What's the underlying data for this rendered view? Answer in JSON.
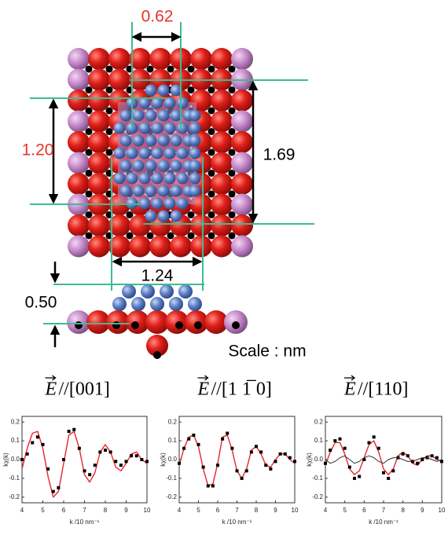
{
  "diagram": {
    "dimensions": [
      "0.62",
      "1.20",
      "1.69",
      "1.24",
      "0.50"
    ],
    "scale": "Scale : nm"
  },
  "chart_data": [
    {
      "type": "line",
      "title": {
        "symbol": "E",
        "text": "//[001]"
      },
      "x_label": "k /10 nm⁻¹",
      "y_label": "kχ(k)",
      "x": [
        4,
        4.25,
        4.5,
        4.75,
        5,
        5.25,
        5.5,
        5.75,
        6,
        6.25,
        6.5,
        6.75,
        7,
        7.25,
        7.5,
        7.75,
        8,
        8.25,
        8.5,
        8.75,
        9,
        9.25,
        9.5,
        9.75,
        10
      ],
      "series": [
        {
          "color": "#e8262a",
          "style": "line",
          "values": [
            -0.05,
            0.06,
            0.14,
            0.15,
            0.06,
            -0.09,
            -0.2,
            -0.17,
            -0.02,
            0.13,
            0.15,
            0.06,
            -0.08,
            -0.12,
            -0.07,
            0.04,
            0.08,
            0.04,
            -0.04,
            -0.06,
            -0.02,
            0.03,
            0.04,
            0,
            -0.02
          ]
        },
        {
          "color": "#000000",
          "style": "markers",
          "values": [
            0,
            0.03,
            0.09,
            0.12,
            0.08,
            -0.05,
            -0.17,
            -0.15,
            0,
            0.15,
            0.16,
            0.06,
            -0.06,
            -0.08,
            -0.03,
            0.04,
            0.05,
            0.04,
            -0.01,
            -0.03,
            -0.01,
            0.02,
            0.02,
            0,
            -0.01
          ]
        }
      ],
      "xlim": [
        4,
        10
      ],
      "ylim": [
        -0.23,
        0.23
      ],
      "xticks": [
        4,
        5,
        6,
        7,
        8,
        9,
        10
      ],
      "yticks": [
        -0.2,
        -0.1,
        {
          "value": 0,
          "label": "0.0"
        },
        0.1,
        0.2
      ]
    },
    {
      "type": "line",
      "title": {
        "symbol": "E",
        "text": "//[1 1̅ 0]"
      },
      "x_label": "k /10 nm⁻¹",
      "y_label": "kχ(k)",
      "x": [
        4,
        4.25,
        4.5,
        4.75,
        5,
        5.25,
        5.5,
        5.75,
        6,
        6.25,
        6.5,
        6.75,
        7,
        7.25,
        7.5,
        7.75,
        8,
        8.25,
        8.5,
        8.75,
        9,
        9.25,
        9.5,
        9.75,
        10
      ],
      "series": [
        {
          "color": "#e8262a",
          "style": "line",
          "values": [
            -0.03,
            0.06,
            0.12,
            0.13,
            0.07,
            -0.05,
            -0.14,
            -0.13,
            -0.02,
            0.12,
            0.13,
            0.05,
            -0.06,
            -0.1,
            -0.05,
            0.05,
            0.07,
            0.03,
            -0.03,
            -0.04,
            0,
            0.03,
            0.03,
            0,
            -0.02
          ]
        },
        {
          "color": "#000000",
          "style": "markers",
          "values": [
            -0.02,
            0.06,
            0.11,
            0.13,
            0.08,
            -0.04,
            -0.14,
            -0.14,
            -0.03,
            0.11,
            0.14,
            0.06,
            -0.06,
            -0.1,
            -0.06,
            0.04,
            0.07,
            0.04,
            -0.03,
            -0.05,
            -0.01,
            0.03,
            0.03,
            0.01,
            -0.01
          ]
        }
      ],
      "xlim": [
        4,
        10
      ],
      "ylim": [
        -0.23,
        0.23
      ],
      "xticks": [
        4,
        5,
        6,
        7,
        8,
        9,
        10
      ],
      "yticks": [
        -0.2,
        -0.1,
        {
          "value": 0,
          "label": "0.0"
        },
        0.1,
        0.2
      ]
    },
    {
      "type": "line",
      "title": {
        "symbol": "E",
        "text": "//[110]"
      },
      "x_label": "k /10 nm⁻¹",
      "y_label": "kχ(k)",
      "x": [
        4,
        4.25,
        4.5,
        4.75,
        5,
        5.25,
        5.5,
        5.75,
        6,
        6.25,
        6.5,
        6.75,
        7,
        7.25,
        7.5,
        7.75,
        8,
        8.25,
        8.5,
        8.75,
        9,
        9.25,
        9.5,
        9.75,
        10
      ],
      "series": [
        {
          "color": "#e8262a",
          "style": "line",
          "values": [
            -0.03,
            0.04,
            0.09,
            0.09,
            0.03,
            -0.05,
            -0.08,
            -0.06,
            0.01,
            0.08,
            0.1,
            0.04,
            -0.05,
            -0.08,
            -0.05,
            0.02,
            0.04,
            0.02,
            -0.02,
            -0.03,
            0,
            0.02,
            0.02,
            0,
            -0.01
          ]
        },
        {
          "color": "#000000",
          "style": "markers",
          "values": [
            -0.02,
            0.05,
            0.1,
            0.11,
            0.06,
            -0.04,
            -0.1,
            -0.09,
            0,
            0.09,
            0.12,
            0.06,
            -0.07,
            -0.1,
            -0.06,
            0.01,
            0.03,
            0.02,
            -0.01,
            -0.02,
            0,
            0.01,
            0.02,
            0.01,
            -0.01
          ]
        },
        {
          "color": "#333333",
          "style": "line",
          "values": [
            0,
            -0.02,
            -0.01,
            0.01,
            0.02,
            0,
            -0.02,
            -0.01,
            0.01,
            0.02,
            0.01,
            -0.01,
            -0.02,
            0,
            0.01,
            0.01,
            0,
            -0.01,
            -0.01,
            0,
            0.01,
            0.01,
            0,
            -0.01,
            0
          ]
        }
      ],
      "xlim": [
        4,
        10
      ],
      "ylim": [
        -0.23,
        0.23
      ],
      "xticks": [
        4,
        5,
        6,
        7,
        8,
        9,
        10
      ],
      "yticks": [
        -0.2,
        -0.1,
        {
          "value": 0,
          "label": "0.0"
        },
        0.1,
        0.2
      ]
    }
  ]
}
